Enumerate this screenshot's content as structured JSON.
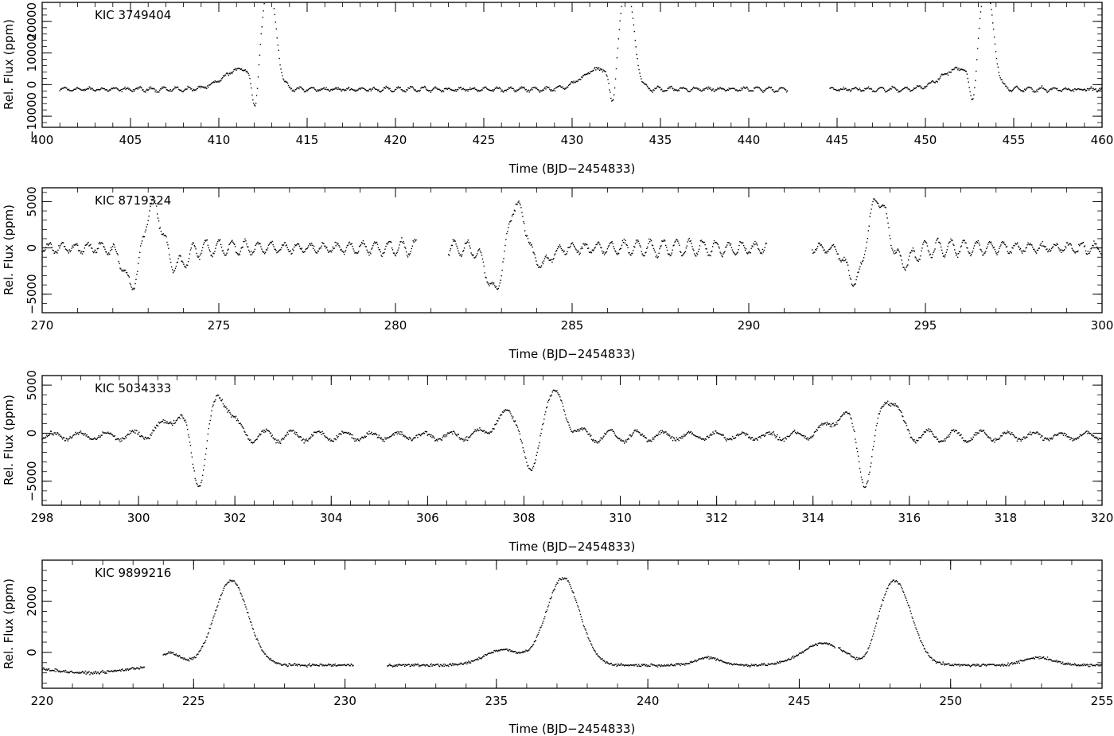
{
  "figure": {
    "background": "#ffffff",
    "ink": "#000000"
  },
  "chart_data": [
    {
      "type": "scatter",
      "label": "KIC 3749404",
      "xlabel": "Time (BJD−2454833)",
      "ylabel": "Rel. Flux (ppm)",
      "xlim": [
        400,
        460
      ],
      "ylim": [
        -13500,
        26000
      ],
      "xticks": [
        400,
        405,
        410,
        415,
        420,
        425,
        430,
        435,
        440,
        445,
        450,
        455,
        460
      ],
      "xtick_labels": [
        "400",
        "405",
        "410",
        "415",
        "420",
        "425",
        "430",
        "435",
        "440",
        "445",
        "450",
        "455",
        "460"
      ],
      "yticks": [
        -10000,
        0,
        10000,
        20000
      ],
      "ytick_labels": [
        "−10000",
        "0",
        "10000",
        "20000"
      ],
      "segments": [
        [
          401,
          442.2
        ],
        [
          444.6,
          460
        ]
      ],
      "baseline": -1500,
      "noise": 350,
      "wiggle": {
        "amp": 700,
        "period": 0.7
      },
      "events": [
        {
          "t": 411.3,
          "amp": 6500,
          "w": 1.0
        },
        {
          "t": 412.05,
          "amp": -13000,
          "w": 0.18
        },
        {
          "t": 412.85,
          "amp": 31000,
          "w": 0.38
        },
        {
          "t": 431.6,
          "amp": 6500,
          "w": 1.0
        },
        {
          "t": 432.3,
          "amp": -12000,
          "w": 0.18
        },
        {
          "t": 433.1,
          "amp": 31000,
          "w": 0.38
        },
        {
          "t": 451.9,
          "amp": 6500,
          "w": 1.0
        },
        {
          "t": 452.7,
          "amp": -12000,
          "w": 0.18
        },
        {
          "t": 453.45,
          "amp": 31000,
          "w": 0.38
        }
      ]
    },
    {
      "type": "scatter",
      "label": "KIC 8719324",
      "xlabel": "Time (BJD−2454833)",
      "ylabel": "Rel. Flux (ppm)",
      "xlim": [
        270,
        300
      ],
      "ylim": [
        -7000,
        6500
      ],
      "xticks": [
        270,
        275,
        280,
        285,
        290,
        295,
        300
      ],
      "xtick_labels": [
        "270",
        "275",
        "280",
        "285",
        "290",
        "295",
        "300"
      ],
      "yticks": [
        -5000,
        0,
        5000
      ],
      "ytick_labels": [
        "−5000",
        "0",
        "5000"
      ],
      "segments": [
        [
          270,
          280.6
        ],
        [
          281.5,
          290.5
        ],
        [
          291.8,
          300
        ]
      ],
      "baseline": 0,
      "noise": 200,
      "wiggle": {
        "amp": 900,
        "period": 0.37
      },
      "events": [
        {
          "t": 272.6,
          "amp": -4800,
          "w": 0.25
        },
        {
          "t": 273.1,
          "amp": 5500,
          "w": 0.28
        },
        {
          "t": 273.75,
          "amp": -2200,
          "w": 0.3
        },
        {
          "t": 282.85,
          "amp": -5200,
          "w": 0.25
        },
        {
          "t": 283.4,
          "amp": 5200,
          "w": 0.28
        },
        {
          "t": 284.05,
          "amp": -2000,
          "w": 0.3
        },
        {
          "t": 293.05,
          "amp": -4000,
          "w": 0.25
        },
        {
          "t": 293.65,
          "amp": 5700,
          "w": 0.28
        },
        {
          "t": 294.3,
          "amp": -1800,
          "w": 0.3
        }
      ]
    },
    {
      "type": "scatter",
      "label": "KIC 5034333",
      "xlabel": "Time (BJD−2454833)",
      "ylabel": "Rel. Flux (ppm)",
      "xlim": [
        298,
        320
      ],
      "ylim": [
        -7500,
        6000
      ],
      "xticks": [
        298,
        300,
        302,
        304,
        306,
        308,
        310,
        312,
        314,
        316,
        318,
        320
      ],
      "xtick_labels": [
        "298",
        "300",
        "302",
        "304",
        "306",
        "308",
        "310",
        "312",
        "314",
        "316",
        "318",
        "320"
      ],
      "yticks": [
        -5000,
        0,
        5000
      ],
      "ytick_labels": [
        "−5000",
        "0",
        "5000"
      ],
      "segments": [
        [
          298,
          320
        ]
      ],
      "baseline": -300,
      "noise": 180,
      "wiggle": {
        "amp": 650,
        "period": 0.55
      },
      "events": [
        {
          "t": 300.9,
          "amp": 2200,
          "w": 0.35
        },
        {
          "t": 301.25,
          "amp": -6500,
          "w": 0.15
        },
        {
          "t": 301.7,
          "amp": 4000,
          "w": 0.22
        },
        {
          "t": 307.8,
          "amp": 2500,
          "w": 0.35
        },
        {
          "t": 308.15,
          "amp": -6500,
          "w": 0.15
        },
        {
          "t": 308.6,
          "amp": 4200,
          "w": 0.25
        },
        {
          "t": 314.7,
          "amp": 2200,
          "w": 0.35
        },
        {
          "t": 315.1,
          "amp": -6500,
          "w": 0.15
        },
        {
          "t": 315.55,
          "amp": 4000,
          "w": 0.22
        }
      ]
    },
    {
      "type": "scatter",
      "label": "KIC 9899216",
      "xlabel": "Time (BJD−2454833)",
      "ylabel": "Rel. Flux (ppm)",
      "xlim": [
        220,
        255
      ],
      "ylim": [
        -1400,
        3600
      ],
      "xticks": [
        220,
        225,
        230,
        235,
        240,
        245,
        250,
        255
      ],
      "xtick_labels": [
        "220",
        "225",
        "230",
        "235",
        "240",
        "245",
        "250",
        "255"
      ],
      "yticks": [
        0,
        2000
      ],
      "ytick_labels": [
        "0",
        "2000"
      ],
      "segments": [
        [
          220,
          223.4
        ],
        [
          224,
          230.3
        ],
        [
          231.4,
          246.2
        ],
        [
          246.3,
          255
        ]
      ],
      "baseline": -500,
      "noise": 45,
      "wiggle": {
        "amp": 0,
        "period": 1
      },
      "events": [
        {
          "t": 221.5,
          "amp": -300,
          "w": 1.2
        },
        {
          "t": 224.2,
          "amp": 500,
          "w": 0.35
        },
        {
          "t": 226.25,
          "amp": 3300,
          "w": 0.55
        },
        {
          "t": 235.2,
          "amp": 600,
          "w": 0.6
        },
        {
          "t": 237.2,
          "amp": 3400,
          "w": 0.55
        },
        {
          "t": 242.0,
          "amp": 300,
          "w": 0.4
        },
        {
          "t": 245.8,
          "amp": 850,
          "w": 0.7
        },
        {
          "t": 247.2,
          "amp": -400,
          "w": 0.3
        },
        {
          "t": 248.15,
          "amp": 3300,
          "w": 0.55
        },
        {
          "t": 252.9,
          "amp": 300,
          "w": 0.5
        }
      ]
    }
  ]
}
